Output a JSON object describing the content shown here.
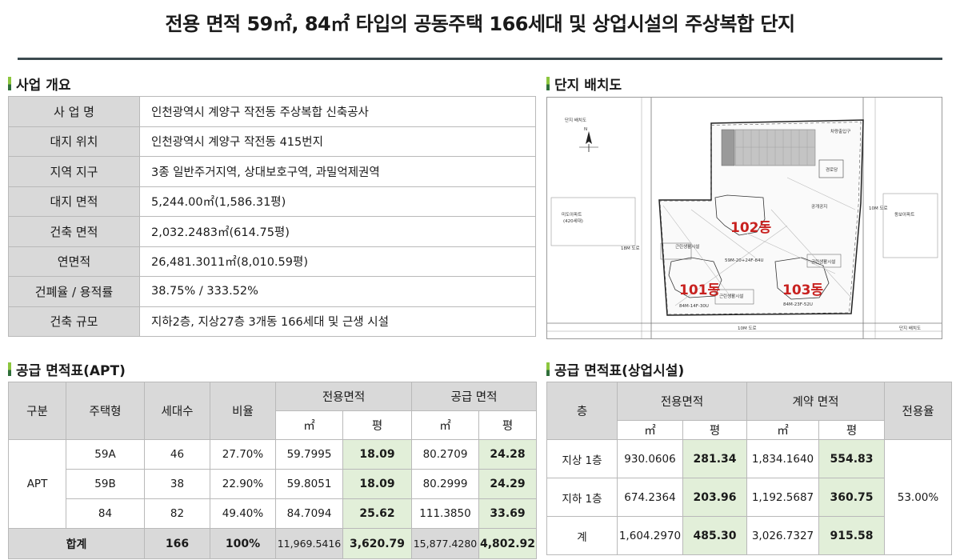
{
  "title": "전용 면적 59㎡, 84㎡ 타입의 공동주택 166세대 및 상업시설의 주상복합 단지",
  "overview": {
    "heading": "사업 개요",
    "rows": [
      {
        "label": "사 업 명",
        "value": "인천광역시 계양구 작전동 주상복합 신축공사"
      },
      {
        "label": "대지 위치",
        "value": "인천광역시 계양구 작전동 415번지"
      },
      {
        "label": "지역 지구",
        "value": "3종 일반주거지역, 상대보호구역, 과밀억제권역"
      },
      {
        "label": "대지 면적",
        "value": "5,244.00㎡(1,586.31평)"
      },
      {
        "label": "건축 면적",
        "value": "2,032.2483㎡(614.75평)"
      },
      {
        "label": "연면적",
        "value": "26,481.3011㎡(8,010.59평)"
      },
      {
        "label": "건폐율 / 용적률",
        "value": "38.75% / 333.52%"
      },
      {
        "label": "건축 규모",
        "value": "지하2층, 지상27층 3개동 166세대 및 근생 시설"
      }
    ]
  },
  "site_plan": {
    "heading": "단지 배치도",
    "inner_caption": "단지 배치도",
    "north": "N",
    "buildings": [
      "101동",
      "102동",
      "103동"
    ],
    "labels": {
      "left_apt": "미도아파트",
      "left_apt_units": "(420세대)",
      "right_apt": "동보아파트",
      "road_18m": "18M 도로",
      "road_10m_right": "10M 도로",
      "road_10m_bottom": "10M 도로",
      "bottom_right_caption": "단지 배치도",
      "parking_entry": "차량출입구",
      "guard": "경로당",
      "public_space": "공개공지",
      "shop_a": "근린생활시설",
      "shop_b": "근린생활시설",
      "shop_c": "근린생활시설",
      "unit_101": "84M-14F-30U",
      "unit_102": "59M-20+24F-84U",
      "unit_103": "84M-23F-52U"
    }
  },
  "apt_supply": {
    "heading": "공급 면적표(APT)",
    "headers": {
      "category": "구분",
      "type": "주택형",
      "units": "세대수",
      "ratio": "비율",
      "exclusive": "전용면적",
      "supply": "공급 면적",
      "m2": "㎡",
      "pyeong": "평"
    },
    "group_label": "APT",
    "rows": [
      {
        "type": "59A",
        "units": "46",
        "ratio": "27.70%",
        "ex_m2": "59.7995",
        "ex_py": "18.09",
        "sup_m2": "80.2709",
        "sup_py": "24.28"
      },
      {
        "type": "59B",
        "units": "38",
        "ratio": "22.90%",
        "ex_m2": "59.8051",
        "ex_py": "18.09",
        "sup_m2": "80.2999",
        "sup_py": "24.29"
      },
      {
        "type": "84",
        "units": "82",
        "ratio": "49.40%",
        "ex_m2": "84.7094",
        "ex_py": "25.62",
        "sup_m2": "111.3850",
        "sup_py": "33.69"
      }
    ],
    "total": {
      "label": "합계",
      "units": "166",
      "ratio": "100%",
      "ex_m2": "11,969.5416",
      "ex_py": "3,620.79",
      "sup_m2": "15,877.4280",
      "sup_py": "4,802.92"
    }
  },
  "commercial_supply": {
    "heading": "공급 면적표(상업시설)",
    "headers": {
      "floor": "층",
      "exclusive": "전용면적",
      "contract": "계약 면적",
      "rate": "전용율",
      "m2": "㎡",
      "pyeong": "평"
    },
    "rows": [
      {
        "floor": "지상 1층",
        "ex_m2": "930.0606",
        "ex_py": "281.34",
        "ct_m2": "1,834.1640",
        "ct_py": "554.83"
      },
      {
        "floor": "지하 1층",
        "ex_m2": "674.2364",
        "ex_py": "203.96",
        "ct_m2": "1,192.5687",
        "ct_py": "360.75"
      },
      {
        "floor": "계",
        "ex_m2": "1,604.2970",
        "ex_py": "485.30",
        "ct_m2": "3,026.7327",
        "ct_py": "915.58"
      }
    ],
    "rate": "53.00%"
  }
}
